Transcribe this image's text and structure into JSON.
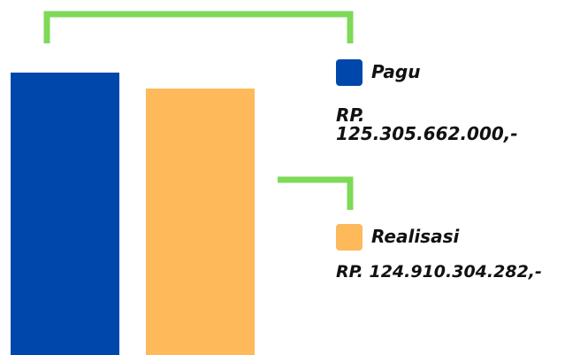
{
  "items": [
    {
      "label": "Pagu",
      "amount": "RP. 125.305.662.000,-"
    },
    {
      "label": "Realisasi",
      "amount": "RP. 124.910.304.282,-"
    }
  ]
}
